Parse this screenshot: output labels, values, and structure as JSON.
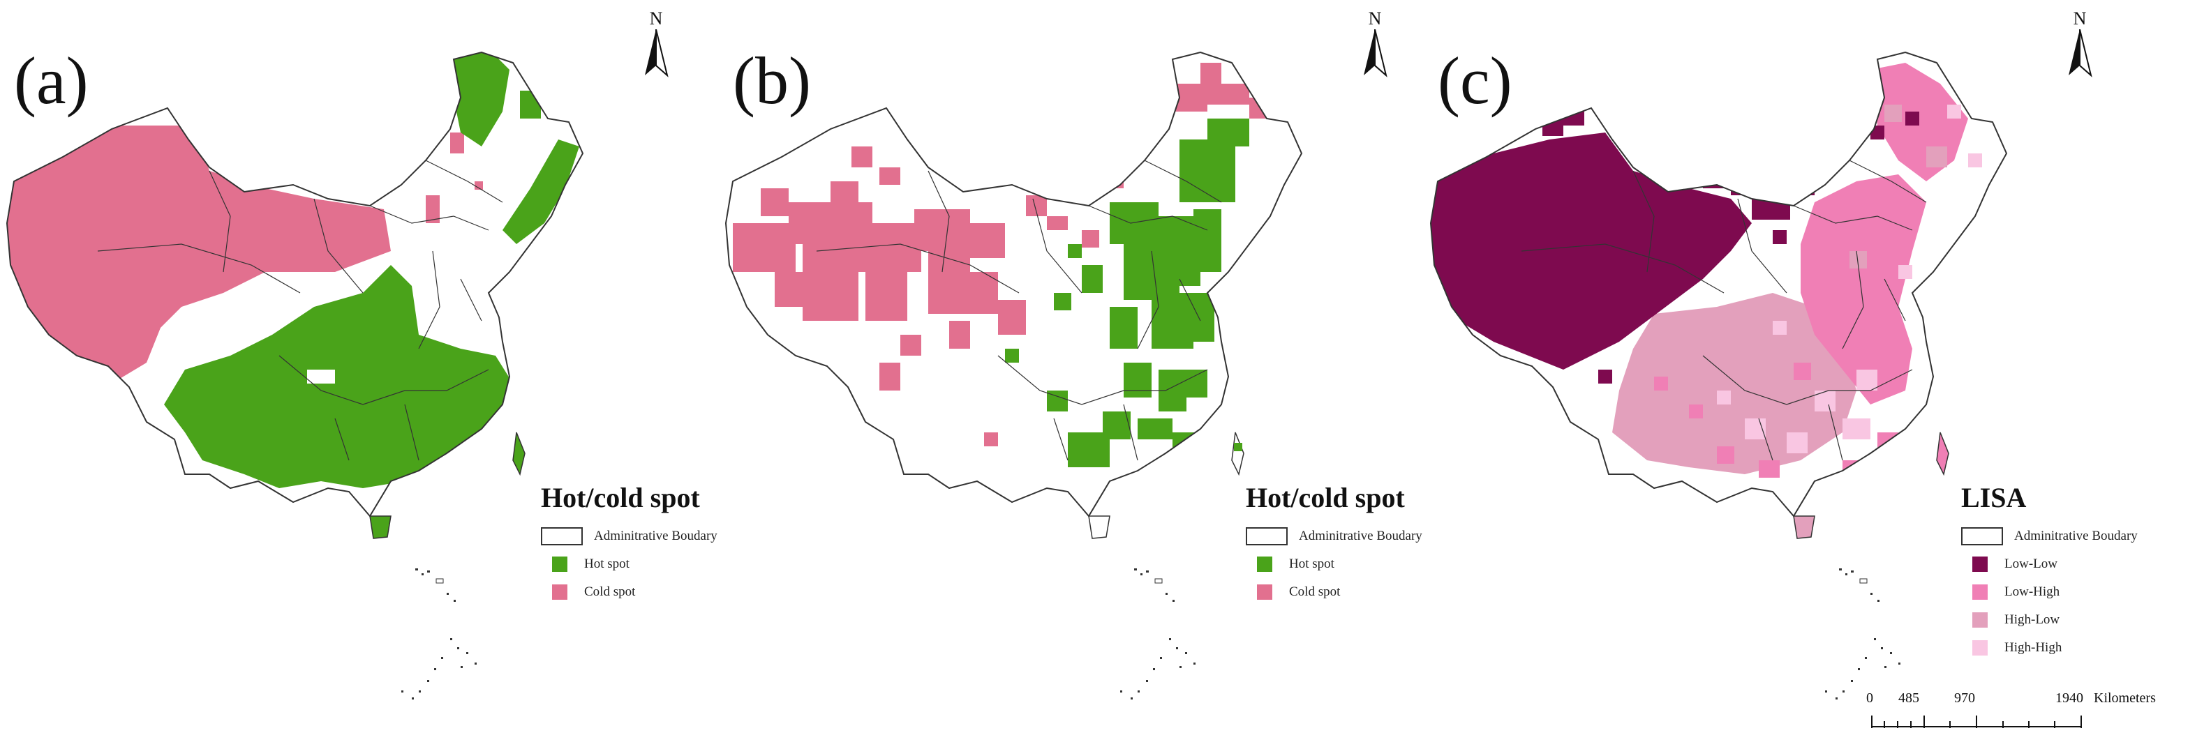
{
  "colors": {
    "hot_spot": "#4aa31a",
    "cold_spot": "#e2708f",
    "low_low": "#7e0a4f",
    "low_high": "#f07fb5",
    "high_low": "#e3a0bc",
    "high_high": "#f9c6e2",
    "boundary": "#333333"
  },
  "panels": [
    {
      "id": "a",
      "label": "(a)",
      "north_label": "N",
      "legend_title": "Hot/cold spot",
      "legend_items": [
        {
          "label": "Adminitrative Boudary",
          "swatch": "boundary"
        },
        {
          "label": "Hot spot",
          "swatch": "hot_spot"
        },
        {
          "label": "Cold spot",
          "swatch": "cold_spot"
        }
      ]
    },
    {
      "id": "b",
      "label": "(b)",
      "north_label": "N",
      "legend_title": "Hot/cold spot",
      "legend_items": [
        {
          "label": "Adminitrative Boudary",
          "swatch": "boundary"
        },
        {
          "label": "Hot spot",
          "swatch": "hot_spot"
        },
        {
          "label": "Cold spot",
          "swatch": "cold_spot"
        }
      ]
    },
    {
      "id": "c",
      "label": "(c)",
      "north_label": "N",
      "legend_title": "LISA",
      "legend_items": [
        {
          "label": "Adminitrative Boudary",
          "swatch": "boundary"
        },
        {
          "label": "Low-Low",
          "swatch": "low_low"
        },
        {
          "label": "Low-High",
          "swatch": "low_high"
        },
        {
          "label": "High-Low",
          "swatch": "high_low"
        },
        {
          "label": "High-High",
          "swatch": "high_high"
        }
      ]
    }
  ],
  "scale_bar": {
    "ticks": [
      "0",
      "485",
      "970",
      "1940"
    ],
    "unit": "Kilometers"
  }
}
